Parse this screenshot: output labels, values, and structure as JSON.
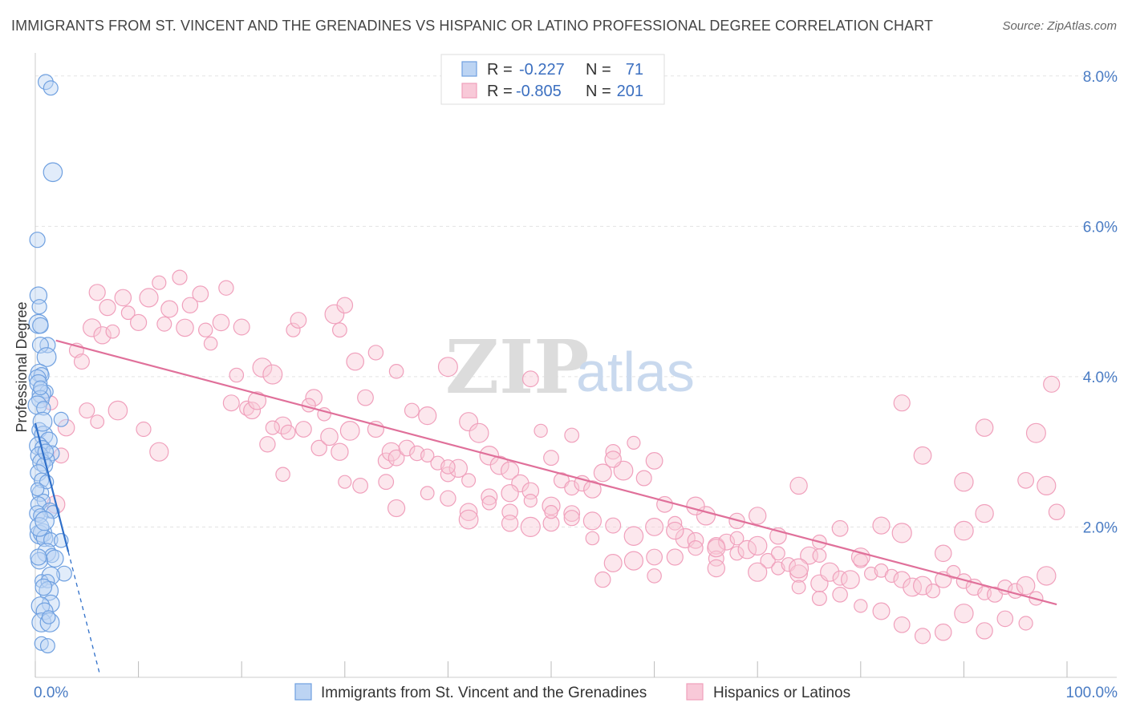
{
  "header": {
    "title": "IMMIGRANTS FROM ST. VINCENT AND THE GRENADINES VS HISPANIC OR LATINO PROFESSIONAL DEGREE CORRELATION CHART",
    "source": "Source: ZipAtlas.com"
  },
  "watermark": {
    "zip": "ZIP",
    "atlas": "atlas"
  },
  "legend": {
    "r_label": "R =",
    "n_label": "N =",
    "rows": [
      {
        "r": "-0.227",
        "n": "71"
      },
      {
        "r": "-0.805",
        "n": "201"
      }
    ]
  },
  "chart_data": {
    "type": "scatter",
    "xlabel": "",
    "ylabel": "Professional Degree",
    "xlim": [
      0,
      100
    ],
    "ylim": [
      0,
      8.2
    ],
    "x_tick_labels": [
      "0.0%",
      "100.0%"
    ],
    "y_ticks": [
      {
        "value": 2,
        "label": "2.0%"
      },
      {
        "value": 4,
        "label": "4.0%"
      },
      {
        "value": 6,
        "label": "6.0%"
      },
      {
        "value": 8,
        "label": "8.0%"
      }
    ],
    "grid": "horizontal dashed",
    "series": [
      {
        "name": "Immigrants from St. Vincent and the Grenadines",
        "color": "#6fa0e0",
        "trend": {
          "x0": 0,
          "y0": 3.38,
          "x1": 3.2,
          "y1": 1.67,
          "dash_to_x": 6.2
        },
        "points": [
          [
            1.0,
            7.92
          ],
          [
            1.5,
            7.84
          ],
          [
            1.7,
            6.72
          ],
          [
            0.2,
            5.82
          ],
          [
            0.3,
            5.08
          ],
          [
            0.4,
            4.93
          ],
          [
            0.3,
            4.7
          ],
          [
            0.5,
            4.68
          ],
          [
            1.2,
            4.42
          ],
          [
            0.5,
            4.42
          ],
          [
            1.1,
            4.26
          ],
          [
            0.4,
            4.05
          ],
          [
            0.6,
            4.02
          ],
          [
            0.2,
            3.98
          ],
          [
            0.3,
            3.91
          ],
          [
            1.1,
            3.8
          ],
          [
            0.6,
            3.77
          ],
          [
            0.5,
            3.7
          ],
          [
            0.2,
            3.62
          ],
          [
            0.8,
            3.58
          ],
          [
            2.5,
            3.43
          ],
          [
            0.4,
            3.29
          ],
          [
            0.8,
            3.22
          ],
          [
            1.3,
            3.15
          ],
          [
            0.3,
            3.08
          ],
          [
            0.7,
            3.05
          ],
          [
            1.6,
            2.98
          ],
          [
            0.4,
            2.95
          ],
          [
            1.2,
            2.9
          ],
          [
            0.6,
            2.86
          ],
          [
            0.9,
            2.82
          ],
          [
            0.3,
            2.72
          ],
          [
            0.6,
            2.62
          ],
          [
            0.5,
            2.45
          ],
          [
            0.8,
            2.35
          ],
          [
            0.3,
            2.3
          ],
          [
            1.4,
            2.22
          ],
          [
            1.7,
            2.2
          ],
          [
            0.2,
            2.18
          ],
          [
            0.5,
            2.15
          ],
          [
            0.4,
            1.9
          ],
          [
            0.7,
            1.92
          ],
          [
            0.9,
            1.85
          ],
          [
            1.5,
            1.83
          ],
          [
            2.5,
            1.82
          ],
          [
            1.1,
            1.66
          ],
          [
            1.6,
            1.62
          ],
          [
            1.9,
            1.58
          ],
          [
            0.4,
            1.55
          ],
          [
            2.8,
            1.38
          ],
          [
            1.5,
            1.35
          ],
          [
            0.6,
            1.28
          ],
          [
            1.2,
            1.28
          ],
          [
            1.3,
            1.15
          ],
          [
            1.5,
            0.98
          ],
          [
            0.5,
            0.95
          ],
          [
            0.9,
            0.88
          ],
          [
            0.6,
            0.73
          ],
          [
            1.4,
            0.73
          ],
          [
            0.6,
            0.45
          ],
          [
            1.2,
            0.42
          ],
          [
            0.4,
            2.0
          ],
          [
            0.7,
            3.4
          ],
          [
            0.9,
            2.08
          ],
          [
            1.1,
            2.6
          ],
          [
            0.3,
            1.6
          ],
          [
            0.8,
            1.2
          ],
          [
            1.3,
            0.8
          ],
          [
            0.5,
            3.85
          ],
          [
            1.0,
            3.0
          ],
          [
            0.2,
            2.5
          ]
        ]
      },
      {
        "name": "Hispanics or Latinos",
        "color": "#f0a0bc",
        "trend": {
          "x0": 2,
          "y0": 4.48,
          "x1": 99,
          "y1": 0.97
        },
        "points": [
          [
            6.0,
            5.12
          ],
          [
            8.5,
            5.05
          ],
          [
            12,
            5.25
          ],
          [
            14,
            5.32
          ],
          [
            16,
            5.1
          ],
          [
            7,
            4.92
          ],
          [
            9,
            4.85
          ],
          [
            11,
            5.05
          ],
          [
            13,
            4.9
          ],
          [
            15,
            4.95
          ],
          [
            18.5,
            5.18
          ],
          [
            5.5,
            4.65
          ],
          [
            6.5,
            4.55
          ],
          [
            7.5,
            4.6
          ],
          [
            10,
            4.72
          ],
          [
            12.5,
            4.7
          ],
          [
            14.5,
            4.65
          ],
          [
            16.5,
            4.62
          ],
          [
            18,
            4.72
          ],
          [
            20,
            4.66
          ],
          [
            19.5,
            4.02
          ],
          [
            17,
            4.44
          ],
          [
            22,
            4.12
          ],
          [
            23,
            4.03
          ],
          [
            25,
            4.62
          ],
          [
            25.5,
            4.75
          ],
          [
            29,
            4.83
          ],
          [
            29.5,
            4.62
          ],
          [
            30,
            4.95
          ],
          [
            27,
            3.72
          ],
          [
            31,
            4.2
          ],
          [
            33,
            4.32
          ],
          [
            35,
            4.07
          ],
          [
            40,
            4.13
          ],
          [
            48,
            3.97
          ],
          [
            4,
            4.35
          ],
          [
            3,
            3.32
          ],
          [
            2.5,
            2.95
          ],
          [
            1.5,
            3.65
          ],
          [
            2,
            2.3
          ],
          [
            4.5,
            4.2
          ],
          [
            5,
            3.55
          ],
          [
            6,
            3.4
          ],
          [
            8,
            3.55
          ],
          [
            10.5,
            3.3
          ],
          [
            12,
            3.0
          ],
          [
            19,
            3.65
          ],
          [
            20.5,
            3.58
          ],
          [
            21,
            3.55
          ],
          [
            22.5,
            3.1
          ],
          [
            21.5,
            3.68
          ],
          [
            24,
            3.35
          ],
          [
            23,
            3.32
          ],
          [
            24.5,
            3.26
          ],
          [
            26,
            3.3
          ],
          [
            26.5,
            3.62
          ],
          [
            28,
            3.5
          ],
          [
            27.5,
            3.05
          ],
          [
            28.5,
            3.2
          ],
          [
            29.5,
            3.0
          ],
          [
            30.5,
            3.28
          ],
          [
            31.5,
            2.55
          ],
          [
            32,
            3.72
          ],
          [
            33,
            3.3
          ],
          [
            34,
            2.88
          ],
          [
            34.5,
            3.0
          ],
          [
            35,
            2.92
          ],
          [
            36,
            3.05
          ],
          [
            37,
            2.98
          ],
          [
            36.5,
            3.55
          ],
          [
            38,
            3.48
          ],
          [
            39,
            2.85
          ],
          [
            40,
            2.7
          ],
          [
            41,
            2.78
          ],
          [
            42,
            3.4
          ],
          [
            43,
            3.25
          ],
          [
            44,
            2.95
          ],
          [
            45,
            2.82
          ],
          [
            46,
            2.75
          ],
          [
            47,
            2.58
          ],
          [
            48,
            2.48
          ],
          [
            49,
            3.28
          ],
          [
            50,
            2.92
          ],
          [
            51,
            2.62
          ],
          [
            52,
            2.52
          ],
          [
            53,
            2.58
          ],
          [
            54,
            2.5
          ],
          [
            55,
            2.72
          ],
          [
            56,
            3.0
          ],
          [
            57,
            2.75
          ],
          [
            58,
            3.12
          ],
          [
            59,
            2.65
          ],
          [
            60,
            2.88
          ],
          [
            61,
            2.3
          ],
          [
            62,
            2.05
          ],
          [
            63,
            1.85
          ],
          [
            64,
            1.82
          ],
          [
            65,
            2.15
          ],
          [
            66,
            1.75
          ],
          [
            67,
            1.8
          ],
          [
            68,
            1.65
          ],
          [
            69,
            1.7
          ],
          [
            70,
            1.75
          ],
          [
            71,
            1.55
          ],
          [
            72,
            1.45
          ],
          [
            73,
            1.5
          ],
          [
            74,
            1.38
          ],
          [
            75,
            1.62
          ],
          [
            76,
            1.25
          ],
          [
            77,
            1.4
          ],
          [
            78,
            1.32
          ],
          [
            79,
            1.3
          ],
          [
            80,
            1.55
          ],
          [
            81,
            1.38
          ],
          [
            82,
            1.42
          ],
          [
            83,
            1.35
          ],
          [
            84,
            1.3
          ],
          [
            85,
            1.2
          ],
          [
            86,
            1.22
          ],
          [
            87,
            1.15
          ],
          [
            88,
            1.3
          ],
          [
            89,
            1.4
          ],
          [
            90,
            1.28
          ],
          [
            91,
            1.2
          ],
          [
            92,
            1.12
          ],
          [
            93,
            1.1
          ],
          [
            94,
            1.2
          ],
          [
            95,
            1.15
          ],
          [
            96,
            1.22
          ],
          [
            97,
            1.05
          ],
          [
            24,
            2.7
          ],
          [
            30,
            2.6
          ],
          [
            35,
            2.25
          ],
          [
            38,
            2.45
          ],
          [
            40,
            2.38
          ],
          [
            42,
            2.62
          ],
          [
            44,
            2.4
          ],
          [
            46,
            2.2
          ],
          [
            48,
            2.35
          ],
          [
            50,
            2.28
          ],
          [
            52,
            2.18
          ],
          [
            54,
            2.08
          ],
          [
            56,
            2.02
          ],
          [
            58,
            1.88
          ],
          [
            60,
            2.0
          ],
          [
            62,
            1.95
          ],
          [
            64,
            1.72
          ],
          [
            66,
            1.58
          ],
          [
            68,
            1.85
          ],
          [
            70,
            1.4
          ],
          [
            72,
            1.65
          ],
          [
            74,
            1.2
          ],
          [
            76,
            1.8
          ],
          [
            78,
            1.1
          ],
          [
            80,
            0.95
          ],
          [
            82,
            0.88
          ],
          [
            84,
            0.7
          ],
          [
            86,
            0.55
          ],
          [
            88,
            0.6
          ],
          [
            90,
            0.85
          ],
          [
            92,
            0.62
          ],
          [
            94,
            0.78
          ],
          [
            96,
            0.72
          ],
          [
            98,
            1.35
          ],
          [
            74,
            2.55
          ],
          [
            84,
            3.65
          ],
          [
            90,
            2.6
          ],
          [
            92,
            3.32
          ],
          [
            96,
            2.62
          ],
          [
            97,
            3.25
          ],
          [
            98,
            2.55
          ],
          [
            99,
            2.2
          ],
          [
            98.5,
            3.9
          ],
          [
            86,
            2.95
          ],
          [
            92,
            2.18
          ],
          [
            90,
            1.95
          ],
          [
            88,
            1.65
          ],
          [
            84,
            1.92
          ],
          [
            82,
            2.02
          ],
          [
            80,
            1.6
          ],
          [
            78,
            1.98
          ],
          [
            76,
            1.62
          ],
          [
            74,
            1.45
          ],
          [
            72,
            1.88
          ],
          [
            70,
            2.15
          ],
          [
            68,
            2.08
          ],
          [
            66,
            1.72
          ],
          [
            64,
            2.28
          ],
          [
            62,
            1.6
          ],
          [
            60,
            1.6
          ],
          [
            58,
            1.55
          ],
          [
            56,
            1.52
          ],
          [
            54,
            1.85
          ],
          [
            52,
            2.12
          ],
          [
            50,
            2.05
          ],
          [
            48,
            2.0
          ],
          [
            46,
            2.45
          ],
          [
            44,
            2.32
          ],
          [
            42,
            2.2
          ],
          [
            40,
            2.8
          ],
          [
            52,
            3.22
          ],
          [
            56,
            2.9
          ],
          [
            34,
            2.6
          ],
          [
            38,
            2.95
          ],
          [
            42,
            2.1
          ],
          [
            46,
            2.05
          ],
          [
            50,
            2.2
          ],
          [
            55,
            1.3
          ],
          [
            60,
            1.35
          ],
          [
            66,
            1.45
          ],
          [
            76,
            1.05
          ]
        ]
      }
    ]
  },
  "bottom_legend": {
    "items": [
      {
        "label": "Immigrants from St. Vincent and the Grenadines",
        "color": "#6fa0e0"
      },
      {
        "label": "Hispanics or Latinos",
        "color": "#f0a0bc"
      }
    ]
  }
}
